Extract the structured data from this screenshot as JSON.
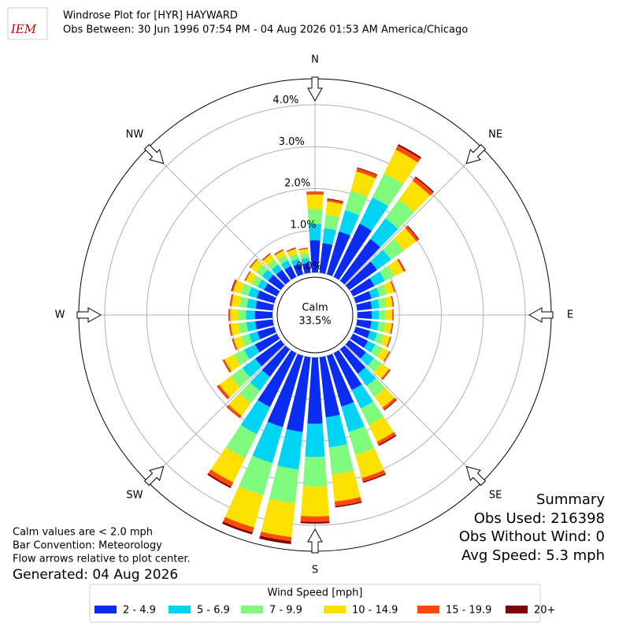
{
  "chart_data": {
    "type": "windrose",
    "title": "Windrose Plot for [HYR] HAYWARD",
    "subtitle": "Obs Between: 30 Jun 1996 07:54 PM - 04 Aug 2026 01:53 AM America/Chicago",
    "logo": "IEM",
    "directions": [
      0,
      10,
      20,
      30,
      40,
      50,
      60,
      70,
      80,
      90,
      100,
      110,
      120,
      130,
      140,
      150,
      160,
      170,
      180,
      190,
      200,
      210,
      220,
      230,
      240,
      250,
      260,
      270,
      280,
      290,
      300,
      310,
      320,
      330,
      340,
      350
    ],
    "legend_title": "Wind Speed [mph]",
    "series": [
      {
        "name": "2 - 4.9",
        "color": "#0a2cf0",
        "values": [
          0.77,
          0.71,
          1.06,
          1.41,
          1.23,
          0.82,
          0.56,
          0.39,
          0.35,
          0.34,
          0.34,
          0.35,
          0.39,
          0.49,
          0.72,
          0.98,
          1.26,
          1.44,
          1.58,
          1.79,
          1.77,
          1.43,
          0.81,
          0.75,
          0.58,
          0.42,
          0.42,
          0.42,
          0.41,
          0.43,
          0.34,
          0.37,
          0.32,
          0.29,
          0.26,
          0.24
        ]
      },
      {
        "name": "5 - 6.9",
        "color": "#00d4f4",
        "values": [
          0.39,
          0.36,
          0.53,
          0.7,
          0.61,
          0.41,
          0.28,
          0.2,
          0.18,
          0.17,
          0.17,
          0.18,
          0.2,
          0.24,
          0.36,
          0.49,
          0.63,
          0.72,
          0.79,
          0.9,
          0.89,
          0.72,
          0.41,
          0.38,
          0.29,
          0.21,
          0.21,
          0.21,
          0.21,
          0.21,
          0.17,
          0.18,
          0.16,
          0.15,
          0.13,
          0.12
        ]
      },
      {
        "name": "7 - 9.9",
        "color": "#80fa7c",
        "values": [
          0.35,
          0.32,
          0.48,
          0.63,
          0.55,
          0.37,
          0.25,
          0.18,
          0.16,
          0.16,
          0.16,
          0.16,
          0.18,
          0.22,
          0.32,
          0.44,
          0.57,
          0.65,
          0.71,
          0.81,
          0.8,
          0.64,
          0.37,
          0.34,
          0.26,
          0.19,
          0.19,
          0.19,
          0.18,
          0.19,
          0.16,
          0.17,
          0.15,
          0.13,
          0.12,
          0.11
        ]
      },
      {
        "name": "10 - 14.9",
        "color": "#fce000",
        "values": [
          0.35,
          0.32,
          0.48,
          0.63,
          0.55,
          0.37,
          0.25,
          0.18,
          0.16,
          0.16,
          0.16,
          0.16,
          0.18,
          0.22,
          0.32,
          0.44,
          0.57,
          0.65,
          0.71,
          0.81,
          0.8,
          0.64,
          0.37,
          0.34,
          0.26,
          0.19,
          0.19,
          0.19,
          0.19,
          0.19,
          0.16,
          0.17,
          0.15,
          0.13,
          0.12,
          0.11
        ]
      },
      {
        "name": "15 - 19.9",
        "color": "#ff4a0a",
        "values": [
          0.06,
          0.05,
          0.08,
          0.11,
          0.1,
          0.07,
          0.04,
          0.02,
          0.02,
          0.02,
          0.02,
          0.02,
          0.02,
          0.04,
          0.06,
          0.08,
          0.09,
          0.11,
          0.13,
          0.1,
          0.12,
          0.11,
          0.06,
          0.06,
          0.04,
          0.03,
          0.03,
          0.03,
          0.03,
          0.03,
          0.02,
          0.02,
          0.02,
          0.02,
          0.02,
          0.01
        ]
      },
      {
        "name": "20+",
        "color": "#800000",
        "values": [
          0.01,
          0.02,
          0.02,
          0.04,
          0.03,
          0.02,
          0.01,
          0.01,
          0.01,
          0.01,
          0.01,
          0.01,
          0.01,
          0.01,
          0.02,
          0.03,
          0.03,
          0.03,
          0.04,
          0.07,
          0.05,
          0.04,
          0.01,
          0.01,
          0.01,
          0.01,
          0.01,
          0.01,
          0.01,
          0.02,
          0.01,
          0.01,
          0.01,
          0.01,
          0.01,
          0.01
        ]
      }
    ],
    "rlim": [
      0,
      4.62
    ],
    "rticks": [
      {
        "value": 0,
        "label": "0.0%"
      },
      {
        "value": 1,
        "label": "1.0%"
      },
      {
        "value": 2,
        "label": "2.0%"
      },
      {
        "value": 3,
        "label": "3.0%"
      },
      {
        "value": 4,
        "label": "4.0%"
      }
    ],
    "xticks": [
      {
        "value": 0,
        "label": "N"
      },
      {
        "value": 45,
        "label": "NE"
      },
      {
        "value": 90,
        "label": "E"
      },
      {
        "value": 135,
        "label": "SE"
      },
      {
        "value": 180,
        "label": "S"
      },
      {
        "value": 225,
        "label": "SW"
      },
      {
        "value": 270,
        "label": "W"
      },
      {
        "value": 315,
        "label": "NW"
      }
    ],
    "calm_label": "Calm",
    "calm_value": 33.5,
    "calm_value_label": "33.5%",
    "notes": [
      "Calm values are < 2.0 mph",
      "Bar Convention: Meteorology",
      "Flow arrows relative to plot center."
    ],
    "generated": "Generated: 04 Aug 2026",
    "summary": [
      "Summary",
      "Obs Used: 216398",
      "Obs Without Wind: 0",
      "Avg Speed: 5.3 mph"
    ]
  }
}
